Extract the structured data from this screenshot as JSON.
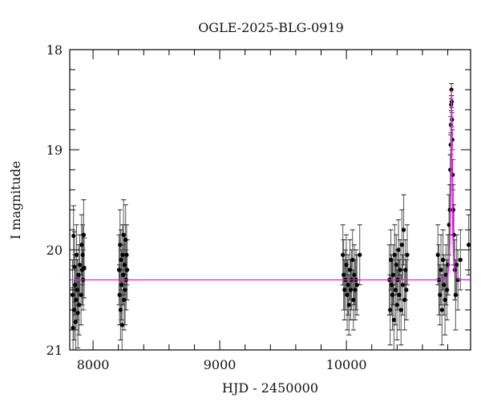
{
  "chart_data": {
    "type": "scatter",
    "title": "OGLE-2025-BLG-0919",
    "xlabel": "HJD - 2450000",
    "ylabel": "I magnitude",
    "xlim": [
      7816,
      10980
    ],
    "ylim": [
      21,
      18
    ],
    "y_inverted": true,
    "x_ticks_major": [
      8000,
      9000,
      10000
    ],
    "x_tick_labels": [
      "8000",
      "9000",
      "10000"
    ],
    "x_minor_step": 200,
    "y_ticks_major": [
      18,
      19,
      20,
      21
    ],
    "y_tick_labels": [
      "18",
      "19",
      "20",
      "21"
    ],
    "y_minor_step": 0.2,
    "grid": false,
    "legend": null,
    "colors": {
      "data": "#000000",
      "errorbar": "#555555",
      "model": "#e020e0",
      "axis": "#000000"
    },
    "model": {
      "type": "point-lens microlensing fit",
      "baseline_mag": 20.3,
      "peak_hjd": 10829,
      "peak_mag": 18.4,
      "tE_days": 14
    },
    "series": [
      {
        "name": "OGLE I-band photometry",
        "points": [
          {
            "x": 7838,
            "y": 20.45,
            "err": 0.35
          },
          {
            "x": 7842,
            "y": 20.78,
            "err": 0.4
          },
          {
            "x": 7846,
            "y": 19.86,
            "err": 0.3
          },
          {
            "x": 7850,
            "y": 20.6,
            "err": 0.3
          },
          {
            "x": 7854,
            "y": 20.17,
            "err": 0.35
          },
          {
            "x": 7858,
            "y": 20.35,
            "err": 0.3
          },
          {
            "x": 7862,
            "y": 20.72,
            "err": 0.35
          },
          {
            "x": 7866,
            "y": 20.5,
            "err": 0.3
          },
          {
            "x": 7870,
            "y": 20.05,
            "err": 0.3
          },
          {
            "x": 7875,
            "y": 20.4,
            "err": 0.3
          },
          {
            "x": 7880,
            "y": 20.63,
            "err": 0.35
          },
          {
            "x": 7885,
            "y": 20.25,
            "err": 0.3
          },
          {
            "x": 7890,
            "y": 20.55,
            "err": 0.3
          },
          {
            "x": 7895,
            "y": 20.15,
            "err": 0.3
          },
          {
            "x": 7905,
            "y": 20.45,
            "err": 0.3
          },
          {
            "x": 7910,
            "y": 19.95,
            "err": 0.3
          },
          {
            "x": 7914,
            "y": 20.2,
            "err": 0.35
          },
          {
            "x": 7918,
            "y": 20.05,
            "err": 0.3
          },
          {
            "x": 7922,
            "y": 20.3,
            "err": 0.3
          },
          {
            "x": 7926,
            "y": 19.85,
            "err": 0.35
          },
          {
            "x": 7930,
            "y": 20.18,
            "err": 0.3
          },
          {
            "x": 8205,
            "y": 20.2,
            "err": 0.35
          },
          {
            "x": 8209,
            "y": 20.45,
            "err": 0.3
          },
          {
            "x": 8213,
            "y": 19.95,
            "err": 0.35
          },
          {
            "x": 8217,
            "y": 20.6,
            "err": 0.3
          },
          {
            "x": 8221,
            "y": 20.1,
            "err": 0.3
          },
          {
            "x": 8225,
            "y": 20.35,
            "err": 0.35
          },
          {
            "x": 8229,
            "y": 20.75,
            "err": 0.35
          },
          {
            "x": 8233,
            "y": 20.05,
            "err": 0.3
          },
          {
            "x": 8237,
            "y": 20.25,
            "err": 0.3
          },
          {
            "x": 8241,
            "y": 19.85,
            "err": 0.35
          },
          {
            "x": 8245,
            "y": 20.5,
            "err": 0.3
          },
          {
            "x": 8249,
            "y": 20.15,
            "err": 0.3
          },
          {
            "x": 8253,
            "y": 20.4,
            "err": 0.35
          },
          {
            "x": 8257,
            "y": 19.9,
            "err": 0.35
          },
          {
            "x": 8261,
            "y": 20.3,
            "err": 0.3
          },
          {
            "x": 8265,
            "y": 20.05,
            "err": 0.3
          },
          {
            "x": 8269,
            "y": 20.2,
            "err": 0.3
          },
          {
            "x": 9972,
            "y": 20.05,
            "err": 0.3
          },
          {
            "x": 9978,
            "y": 20.25,
            "err": 0.35
          },
          {
            "x": 9985,
            "y": 20.4,
            "err": 0.3
          },
          {
            "x": 9992,
            "y": 20.3,
            "err": 0.3
          },
          {
            "x": 9999,
            "y": 20.15,
            "err": 0.3
          },
          {
            "x": 10006,
            "y": 20.45,
            "err": 0.35
          },
          {
            "x": 10013,
            "y": 20.35,
            "err": 0.3
          },
          {
            "x": 10020,
            "y": 20.55,
            "err": 0.3
          },
          {
            "x": 10027,
            "y": 20.2,
            "err": 0.3
          },
          {
            "x": 10034,
            "y": 20.4,
            "err": 0.3
          },
          {
            "x": 10041,
            "y": 20.3,
            "err": 0.3
          },
          {
            "x": 10048,
            "y": 20.1,
            "err": 0.3
          },
          {
            "x": 10055,
            "y": 20.5,
            "err": 0.3
          },
          {
            "x": 10062,
            "y": 20.25,
            "err": 0.3
          },
          {
            "x": 10069,
            "y": 20.4,
            "err": 0.3
          },
          {
            "x": 10076,
            "y": 20.3,
            "err": 0.3
          },
          {
            "x": 10083,
            "y": 20.35,
            "err": 0.3
          },
          {
            "x": 10105,
            "y": 20.05,
            "err": 0.3
          },
          {
            "x": 10339,
            "y": 20.3,
            "err": 0.35
          },
          {
            "x": 10345,
            "y": 20.6,
            "err": 0.35
          },
          {
            "x": 10351,
            "y": 20.1,
            "err": 0.3
          },
          {
            "x": 10357,
            "y": 20.35,
            "err": 0.3
          },
          {
            "x": 10363,
            "y": 20.45,
            "err": 0.35
          },
          {
            "x": 10369,
            "y": 20.25,
            "err": 0.3
          },
          {
            "x": 10375,
            "y": 20.7,
            "err": 0.35
          },
          {
            "x": 10381,
            "y": 20.05,
            "err": 0.3
          },
          {
            "x": 10387,
            "y": 20.4,
            "err": 0.35
          },
          {
            "x": 10393,
            "y": 20.15,
            "err": 0.3
          },
          {
            "x": 10399,
            "y": 20.55,
            "err": 0.35
          },
          {
            "x": 10405,
            "y": 20.3,
            "err": 0.3
          },
          {
            "x": 10411,
            "y": 20.0,
            "err": 0.3
          },
          {
            "x": 10417,
            "y": 20.45,
            "err": 0.35
          },
          {
            "x": 10424,
            "y": 20.2,
            "err": 0.3
          },
          {
            "x": 10431,
            "y": 20.6,
            "err": 0.35
          },
          {
            "x": 10438,
            "y": 19.95,
            "err": 0.35
          },
          {
            "x": 10445,
            "y": 20.35,
            "err": 0.3
          },
          {
            "x": 10452,
            "y": 19.8,
            "err": 0.35
          },
          {
            "x": 10459,
            "y": 20.5,
            "err": 0.3
          },
          {
            "x": 10466,
            "y": 20.2,
            "err": 0.3
          },
          {
            "x": 10473,
            "y": 20.4,
            "err": 0.3
          },
          {
            "x": 10480,
            "y": 20.05,
            "err": 0.3
          },
          {
            "x": 10722,
            "y": 20.05,
            "err": 0.3
          },
          {
            "x": 10730,
            "y": 20.3,
            "err": 0.35
          },
          {
            "x": 10738,
            "y": 20.45,
            "err": 0.3
          },
          {
            "x": 10746,
            "y": 20.2,
            "err": 0.35
          },
          {
            "x": 10754,
            "y": 20.6,
            "err": 0.35
          },
          {
            "x": 10762,
            "y": 20.1,
            "err": 0.3
          },
          {
            "x": 10770,
            "y": 20.35,
            "err": 0.3
          },
          {
            "x": 10778,
            "y": 20.5,
            "err": 0.35
          },
          {
            "x": 10786,
            "y": 20.25,
            "err": 0.3
          },
          {
            "x": 10794,
            "y": 20.4,
            "err": 0.3
          },
          {
            "x": 10802,
            "y": 20.15,
            "err": 0.3
          },
          {
            "x": 10810,
            "y": 19.75,
            "err": 0.3
          },
          {
            "x": 10816,
            "y": 19.6,
            "err": 0.25
          },
          {
            "x": 10820,
            "y": 19.2,
            "err": 0.15
          },
          {
            "x": 10823,
            "y": 18.95,
            "err": 0.1
          },
          {
            "x": 10825,
            "y": 18.75,
            "err": 0.08
          },
          {
            "x": 10827,
            "y": 18.55,
            "err": 0.06
          },
          {
            "x": 10829,
            "y": 18.4,
            "err": 0.06
          },
          {
            "x": 10831,
            "y": 18.52,
            "err": 0.06
          },
          {
            "x": 10833,
            "y": 18.7,
            "err": 0.07
          },
          {
            "x": 10836,
            "y": 18.9,
            "err": 0.1
          },
          {
            "x": 10839,
            "y": 19.25,
            "err": 0.15
          },
          {
            "x": 10843,
            "y": 19.6,
            "err": 0.25
          },
          {
            "x": 10848,
            "y": 19.85,
            "err": 0.3
          },
          {
            "x": 10855,
            "y": 20.2,
            "err": 0.3
          },
          {
            "x": 10862,
            "y": 20.45,
            "err": 0.35
          },
          {
            "x": 10870,
            "y": 20.15,
            "err": 0.3
          },
          {
            "x": 10880,
            "y": 20.3,
            "err": 0.3
          },
          {
            "x": 10900,
            "y": 20.1,
            "err": 0.3
          },
          {
            "x": 10965,
            "y": 19.95,
            "err": 0.3
          }
        ]
      }
    ]
  }
}
